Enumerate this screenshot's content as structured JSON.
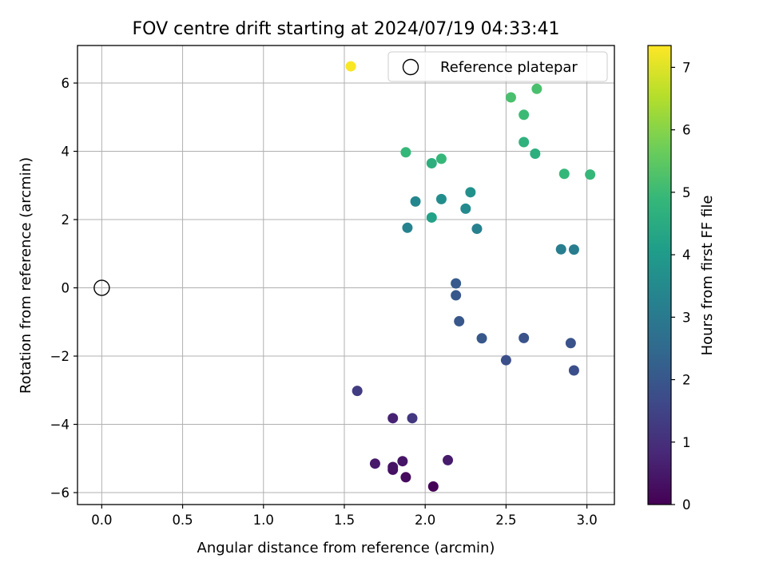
{
  "chart_data": {
    "type": "scatter",
    "title": "FOV centre drift starting at 2024/07/19 04:33:41",
    "xlabel": "Angular distance from reference (arcmin)",
    "ylabel": "Rotation from reference (arcmin)",
    "xlim": [
      -0.15,
      3.17
    ],
    "ylim": [
      -6.35,
      7.1
    ],
    "xticks": [
      0.0,
      0.5,
      1.0,
      1.5,
      2.0,
      2.5,
      3.0
    ],
    "xtick_labels": [
      "0.0",
      "0.5",
      "1.0",
      "1.5",
      "2.0",
      "2.5",
      "3.0"
    ],
    "yticks": [
      -6,
      -4,
      -2,
      0,
      2,
      4,
      6
    ],
    "ytick_labels": [
      "−6",
      "−4",
      "−2",
      "0",
      "2",
      "4",
      "6"
    ],
    "grid": true,
    "legend": {
      "placement": "top-right",
      "entries": [
        "Reference platepar"
      ]
    },
    "reference_point": {
      "x": 0.0,
      "y": 0.0,
      "marker": "open-circle"
    },
    "colorbar": {
      "label": "Hours from first FF file",
      "range": [
        0,
        7.35
      ],
      "ticks": [
        0,
        1,
        2,
        3,
        4,
        5,
        6,
        7
      ],
      "tick_labels": [
        "0",
        "1",
        "2",
        "3",
        "4",
        "5",
        "6",
        "7"
      ],
      "colormap": "viridis",
      "colormap_stops": [
        "#440154",
        "#482878",
        "#3e4989",
        "#31688e",
        "#26828e",
        "#1f9e89",
        "#35b779",
        "#6ece58",
        "#b5de2b",
        "#fde725"
      ]
    },
    "series": [
      {
        "points": [
          {
            "x": 2.05,
            "y": -5.82,
            "t": 0.05
          },
          {
            "x": 1.88,
            "y": -5.55,
            "t": 0.2
          },
          {
            "x": 1.8,
            "y": -5.33,
            "t": 0.3
          },
          {
            "x": 1.8,
            "y": -5.25,
            "t": 0.35
          },
          {
            "x": 1.86,
            "y": -5.08,
            "t": 0.4
          },
          {
            "x": 1.69,
            "y": -5.15,
            "t": 0.5
          },
          {
            "x": 2.14,
            "y": -5.05,
            "t": 0.55
          },
          {
            "x": 1.8,
            "y": -3.82,
            "t": 0.7
          },
          {
            "x": 1.92,
            "y": -3.82,
            "t": 1.2
          },
          {
            "x": 1.58,
            "y": -3.02,
            "t": 1.3
          },
          {
            "x": 2.5,
            "y": -2.12,
            "t": 1.8
          },
          {
            "x": 2.92,
            "y": -2.42,
            "t": 1.8
          },
          {
            "x": 2.9,
            "y": -1.62,
            "t": 1.9
          },
          {
            "x": 2.61,
            "y": -1.47,
            "t": 1.9
          },
          {
            "x": 2.35,
            "y": -1.48,
            "t": 2.0
          },
          {
            "x": 2.21,
            "y": -0.98,
            "t": 2.0
          },
          {
            "x": 2.19,
            "y": -0.22,
            "t": 2.0
          },
          {
            "x": 2.19,
            "y": 0.13,
            "t": 2.1
          },
          {
            "x": 2.84,
            "y": 1.13,
            "t": 3.1
          },
          {
            "x": 2.92,
            "y": 1.12,
            "t": 3.1
          },
          {
            "x": 2.32,
            "y": 1.73,
            "t": 3.2
          },
          {
            "x": 1.89,
            "y": 1.76,
            "t": 3.3
          },
          {
            "x": 1.94,
            "y": 2.53,
            "t": 3.4
          },
          {
            "x": 2.25,
            "y": 2.32,
            "t": 3.5
          },
          {
            "x": 2.1,
            "y": 2.6,
            "t": 3.6
          },
          {
            "x": 2.28,
            "y": 2.8,
            "t": 3.7
          },
          {
            "x": 2.04,
            "y": 2.06,
            "t": 4.2
          },
          {
            "x": 2.04,
            "y": 3.65,
            "t": 4.6
          },
          {
            "x": 2.68,
            "y": 3.93,
            "t": 4.6
          },
          {
            "x": 2.61,
            "y": 4.27,
            "t": 4.7
          },
          {
            "x": 2.1,
            "y": 3.78,
            "t": 4.9
          },
          {
            "x": 1.88,
            "y": 3.97,
            "t": 4.9
          },
          {
            "x": 2.86,
            "y": 3.34,
            "t": 4.9
          },
          {
            "x": 3.02,
            "y": 3.32,
            "t": 4.9
          },
          {
            "x": 2.61,
            "y": 5.07,
            "t": 5.0
          },
          {
            "x": 2.53,
            "y": 5.58,
            "t": 5.2
          },
          {
            "x": 2.69,
            "y": 5.83,
            "t": 5.2
          },
          {
            "x": 1.54,
            "y": 6.49,
            "t": 7.3
          }
        ]
      }
    ]
  }
}
